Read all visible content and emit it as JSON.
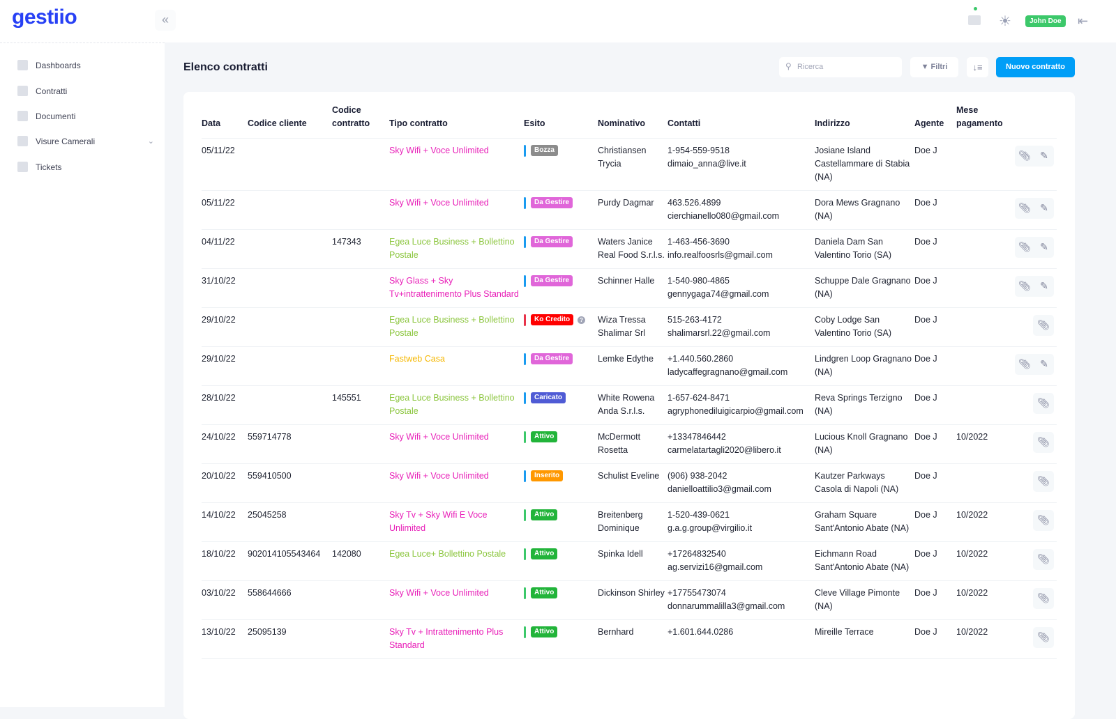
{
  "app": {
    "logo": "gestiio",
    "user": "John Doe"
  },
  "sidebar": {
    "items": [
      {
        "label": "Dashboards"
      },
      {
        "label": "Contratti"
      },
      {
        "label": "Documenti"
      },
      {
        "label": "Visure Camerali"
      },
      {
        "label": "Tickets"
      }
    ]
  },
  "page": {
    "title": "Elenco contratti",
    "search_placeholder": "Ricerca",
    "filter_label": "Filtri",
    "new_label": "Nuovo contratto"
  },
  "table": {
    "headers": [
      "Data",
      "Codice cliente",
      "Codice contratto",
      "Tipo contratto",
      "Esito",
      "Nominativo",
      "Contatti",
      "Indirizzo",
      "Agente",
      "Mese pagamento"
    ],
    "rows": [
      {
        "data": "05/11/22",
        "cliente": "",
        "contratto": "",
        "tipo": "Sky Wifi + Voce Unlimited",
        "tipo_color": "#e81fb8",
        "esito": "Bozza",
        "esito_color": "#8c8c8c",
        "bar_color": "#1a9bf0",
        "nome": "Christiansen Trycia",
        "tel": "1-954-559-9518",
        "email": "dimaio_anna@live.it",
        "indirizzo": "Josiane Island Castellammare di Stabia (NA)",
        "agente": "Doe J",
        "mese": "",
        "edit": true
      },
      {
        "data": "05/11/22",
        "cliente": "",
        "contratto": "",
        "tipo": "Sky Wifi + Voce Unlimited",
        "tipo_color": "#e81fb8",
        "esito": "Da Gestire",
        "esito_color": "#e066d9",
        "bar_color": "#1a9bf0",
        "nome": "Purdy Dagmar",
        "tel": "463.526.4899",
        "email": "cierchianello080@gmail.com",
        "indirizzo": "Dora Mews Gragnano (NA)",
        "agente": "Doe J",
        "mese": "",
        "edit": true
      },
      {
        "data": "04/11/22",
        "cliente": "",
        "contratto": "147343",
        "tipo": "Egea Luce Business + Bollettino Postale",
        "tipo_color": "#8cc63f",
        "esito": "Da Gestire",
        "esito_color": "#e066d9",
        "bar_color": "#1a9bf0",
        "nome": "Waters Janice Real Food S.r.l.s.",
        "tel": "1-463-456-3690",
        "email": "info.realfoosrls@gmail.com",
        "indirizzo": "Daniela Dam San Valentino Torio (SA)",
        "agente": "Doe J",
        "mese": "",
        "edit": true
      },
      {
        "data": "31/10/22",
        "cliente": "",
        "contratto": "",
        "tipo": "Sky Glass + Sky Tv+intrattenimento Plus Standard",
        "tipo_color": "#e81fb8",
        "esito": "Da Gestire",
        "esito_color": "#e066d9",
        "bar_color": "#1a9bf0",
        "nome": "Schinner Halle",
        "tel": "1-540-980-4865",
        "email": "gennygaga74@gmail.com",
        "indirizzo": "Schuppe Dale Gragnano (NA)",
        "agente": "Doe J",
        "mese": "",
        "edit": true
      },
      {
        "data": "29/10/22",
        "cliente": "",
        "contratto": "",
        "tipo": "Egea Luce Business + Bollettino Postale",
        "tipo_color": "#8cc63f",
        "esito": "Ko Credito",
        "esito_color": "#ff0000",
        "bar_color": "#e8334a",
        "help": "?",
        "nome": "Wiza Tressa Shalimar Srl",
        "tel": "515-263-4172",
        "email": "shalimarsrl.22@gmail.com",
        "indirizzo": "Coby Lodge San Valentino Torio (SA)",
        "agente": "Doe J",
        "mese": "",
        "edit": false
      },
      {
        "data": "29/10/22",
        "cliente": "",
        "contratto": "",
        "tipo": "Fastweb Casa",
        "tipo_color": "#f5b700",
        "esito": "Da Gestire",
        "esito_color": "#e066d9",
        "bar_color": "#1a9bf0",
        "nome": "Lemke Edythe",
        "tel": "+1.440.560.2860",
        "email": "ladycaffegragnano@gmail.com",
        "indirizzo": "Lindgren Loop Gragnano (NA)",
        "agente": "Doe J",
        "mese": "",
        "edit": true
      },
      {
        "data": "28/10/22",
        "cliente": "",
        "contratto": "145551",
        "tipo": "Egea Luce Business + Bollettino Postale",
        "tipo_color": "#8cc63f",
        "esito": "Caricato",
        "esito_color": "#4f5bd5",
        "bar_color": "#1a9bf0",
        "nome": "White Rowena Anda S.r.l.s.",
        "tel": "1-657-624-8471",
        "email": "agryphonediluigicarpio@gmail.com",
        "indirizzo": "Reva Springs Terzigno (NA)",
        "agente": "Doe J",
        "mese": "",
        "edit": false
      },
      {
        "data": "24/10/22",
        "cliente": "559714778",
        "contratto": "",
        "tipo": "Sky Wifi + Voce Unlimited",
        "tipo_color": "#e81fb8",
        "esito": "Attivo",
        "esito_color": "#22b43a",
        "bar_color": "#3cc86a",
        "nome": "McDermott Rosetta",
        "tel": "+13347846442",
        "email": "carmelatartagli2020@libero.it",
        "indirizzo": "Lucious Knoll Gragnano (NA)",
        "agente": "Doe J",
        "mese": "10/2022",
        "edit": false
      },
      {
        "data": "20/10/22",
        "cliente": "559410500",
        "contratto": "",
        "tipo": "Sky Wifi + Voce Unlimited",
        "tipo_color": "#e81fb8",
        "esito": "Inserito",
        "esito_color": "#ff9800",
        "bar_color": "#1a9bf0",
        "nome": "Schulist Eveline",
        "tel": "(906) 938-2042",
        "email": "danielloattilio3@gmail.com",
        "indirizzo": "Kautzer Parkways Casola di Napoli (NA)",
        "agente": "Doe J",
        "mese": "",
        "edit": false
      },
      {
        "data": "14/10/22",
        "cliente": "25045258",
        "contratto": "",
        "tipo": "Sky Tv + Sky Wifi E Voce Unlimited",
        "tipo_color": "#e81fb8",
        "esito": "Attivo",
        "esito_color": "#22b43a",
        "bar_color": "#3cc86a",
        "nome": "Breitenberg Dominique",
        "tel": "1-520-439-0621",
        "email": "g.a.g.group@virgilio.it",
        "indirizzo": "Graham Square Sant'Antonio Abate (NA)",
        "agente": "Doe J",
        "mese": "10/2022",
        "edit": false
      },
      {
        "data": "18/10/22",
        "cliente": "902014105543464",
        "contratto": "142080",
        "tipo": "Egea Luce+ Bollettino Postale",
        "tipo_color": "#8cc63f",
        "esito": "Attivo",
        "esito_color": "#22b43a",
        "bar_color": "#3cc86a",
        "nome": "Spinka Idell",
        "tel": "+17264832540",
        "email": "ag.servizi16@gmail.com",
        "indirizzo": "Eichmann Road Sant'Antonio Abate (NA)",
        "agente": "Doe J",
        "mese": "10/2022",
        "edit": false
      },
      {
        "data": "03/10/22",
        "cliente": "558644666",
        "contratto": "",
        "tipo": "Sky Wifi + Voce Unlimited",
        "tipo_color": "#e81fb8",
        "esito": "Attivo",
        "esito_color": "#22b43a",
        "bar_color": "#3cc86a",
        "nome": "Dickinson Shirley",
        "tel": "+17755473074",
        "email": "donnarummalilla3@gmail.com",
        "indirizzo": "Cleve Village Pimonte (NA)",
        "agente": "Doe J",
        "mese": "10/2022",
        "edit": false
      },
      {
        "data": "13/10/22",
        "cliente": "25095139",
        "contratto": "",
        "tipo": "Sky Tv + Intrattenimento Plus Standard",
        "tipo_color": "#e81fb8",
        "esito": "Attivo",
        "esito_color": "#22b43a",
        "bar_color": "#3cc86a",
        "nome": "Bernhard",
        "tel": "+1.601.644.0286",
        "email": "",
        "indirizzo": "Mireille Terrace",
        "agente": "Doe J",
        "mese": "10/2022",
        "edit": false
      }
    ]
  }
}
